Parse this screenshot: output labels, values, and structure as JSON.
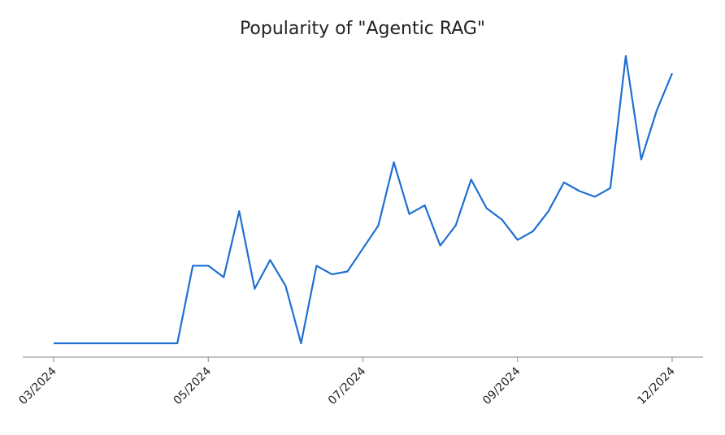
{
  "chart_data": {
    "type": "line",
    "title": "Popularity of \"Agentic RAG\"",
    "categories": [
      "03/2024",
      null,
      null,
      null,
      null,
      null,
      null,
      null,
      null,
      null,
      "05/2024",
      null,
      null,
      null,
      null,
      null,
      null,
      null,
      null,
      null,
      "07/2024",
      null,
      null,
      null,
      null,
      null,
      null,
      null,
      null,
      null,
      "09/2024",
      null,
      null,
      null,
      null,
      null,
      null,
      null,
      null,
      null,
      "12/2024"
    ],
    "series": [
      {
        "name": "Agentic RAG",
        "color": "#1f6fd1",
        "values": [
          0,
          0,
          0,
          0,
          0,
          0,
          0,
          0,
          0,
          27,
          27,
          23,
          46,
          19,
          29,
          20,
          0,
          27,
          24,
          25,
          33,
          41,
          63,
          45,
          48,
          34,
          41,
          57,
          47,
          43,
          36,
          39,
          46,
          56,
          53,
          51,
          54,
          100,
          64,
          81,
          94
        ]
      }
    ],
    "ylim": [
      0,
      100
    ]
  }
}
